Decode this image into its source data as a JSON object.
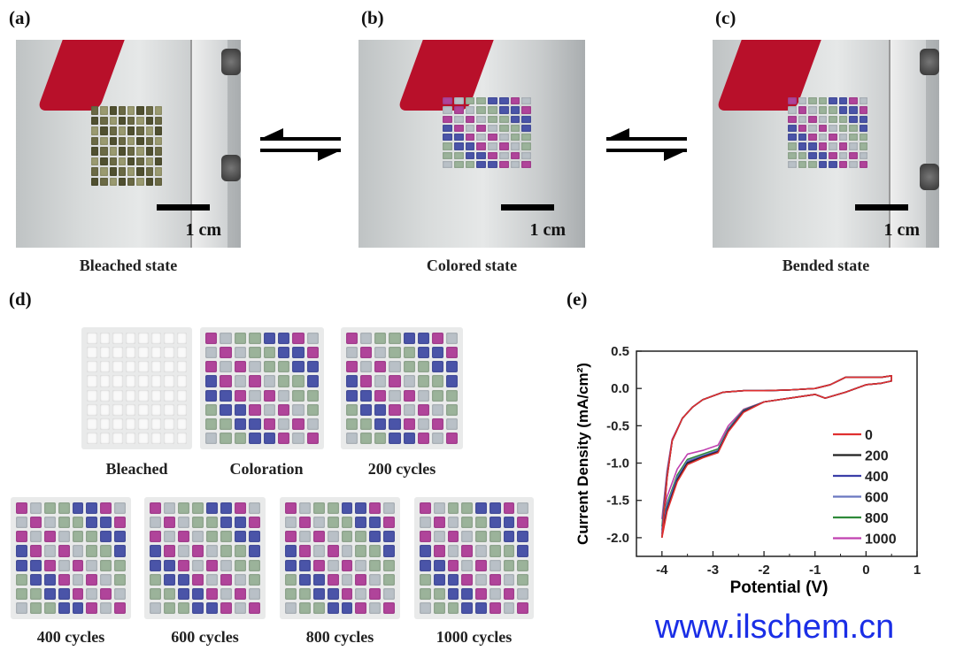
{
  "panels": {
    "a": {
      "label": "(a)",
      "caption": "Bleached state",
      "scale": "1 cm"
    },
    "b": {
      "label": "(b)",
      "caption": "Colored state",
      "scale": "1 cm"
    },
    "c": {
      "label": "(c)",
      "caption": "Bended state",
      "scale": "1 cm"
    },
    "d": {
      "label": "(d)",
      "samples": [
        "Bleached",
        "Coloration",
        "200 cycles",
        "400 cycles",
        "600 cycles",
        "800 cycles",
        "1000 cycles"
      ]
    },
    "e": {
      "label": "(e)"
    }
  },
  "watermark": "www.ilschem.cn",
  "colors": {
    "magenta": "#b0449a",
    "blue": "#4a54a8",
    "green": "#9bb39a",
    "gray": "#b9c0c7",
    "tape_red": "#b8102a",
    "watermark": "#1a2ee6"
  },
  "chart_data": {
    "type": "line",
    "title": "",
    "xlabel": "Potential (V)",
    "ylabel": "Current Density (mA/cm²)",
    "xlim": [
      -4.5,
      1
    ],
    "ylim": [
      -2.25,
      0.5
    ],
    "xticks": [
      "-4",
      "-3",
      "-2",
      "-1",
      "0",
      "1"
    ],
    "yticks": [
      "0.5",
      "0.0",
      "-0.5",
      "-1.0",
      "-1.5",
      "-2.0"
    ],
    "legend_placement": "right",
    "grid": false,
    "x": [
      -4.0,
      -3.9,
      -3.8,
      -3.6,
      -3.4,
      -3.2,
      -2.8,
      -2.4,
      -2.0,
      -1.5,
      -1.0,
      -0.7,
      -0.4,
      0.0,
      0.3,
      0.5,
      0.5,
      0.3,
      0.0,
      -0.4,
      -0.8,
      -1.0,
      -1.5,
      -2.0,
      -2.4,
      -2.7,
      -2.9,
      -3.2,
      -3.5,
      -3.7,
      -3.9,
      -4.0
    ],
    "series": [
      {
        "name": "0",
        "color": "#e03030",
        "y": [
          -2.0,
          -1.2,
          -0.7,
          -0.4,
          -0.25,
          -0.15,
          -0.05,
          -0.03,
          -0.03,
          -0.02,
          0.0,
          0.05,
          0.15,
          0.15,
          0.15,
          0.17,
          0.1,
          0.07,
          0.05,
          -0.05,
          -0.13,
          -0.08,
          -0.13,
          -0.18,
          -0.32,
          -0.58,
          -0.86,
          -0.93,
          -1.02,
          -1.25,
          -1.65,
          -2.0
        ]
      },
      {
        "name": "200",
        "color": "#222222",
        "y": [
          -2.0,
          -1.2,
          -0.7,
          -0.4,
          -0.25,
          -0.15,
          -0.05,
          -0.03,
          -0.03,
          -0.02,
          0.0,
          0.05,
          0.15,
          0.15,
          0.15,
          0.17,
          0.1,
          0.07,
          0.05,
          -0.05,
          -0.13,
          -0.08,
          -0.13,
          -0.18,
          -0.31,
          -0.57,
          -0.85,
          -0.92,
          -1.0,
          -1.23,
          -1.63,
          -1.98
        ]
      },
      {
        "name": "400",
        "color": "#3b3fa8",
        "y": [
          -1.95,
          -1.18,
          -0.7,
          -0.4,
          -0.25,
          -0.15,
          -0.05,
          -0.03,
          -0.03,
          -0.02,
          0.0,
          0.05,
          0.15,
          0.15,
          0.15,
          0.17,
          0.1,
          0.07,
          0.05,
          -0.05,
          -0.13,
          -0.08,
          -0.13,
          -0.18,
          -0.3,
          -0.56,
          -0.84,
          -0.91,
          -0.99,
          -1.21,
          -1.6,
          -1.95
        ]
      },
      {
        "name": "600",
        "color": "#6a78c0",
        "y": [
          -1.9,
          -1.16,
          -0.7,
          -0.4,
          -0.25,
          -0.15,
          -0.05,
          -0.03,
          -0.03,
          -0.02,
          0.0,
          0.05,
          0.15,
          0.15,
          0.15,
          0.17,
          0.1,
          0.07,
          0.05,
          -0.05,
          -0.13,
          -0.08,
          -0.13,
          -0.18,
          -0.3,
          -0.55,
          -0.83,
          -0.9,
          -0.97,
          -1.19,
          -1.57,
          -1.9
        ]
      },
      {
        "name": "800",
        "color": "#2f8a3a",
        "y": [
          -1.85,
          -1.14,
          -0.7,
          -0.4,
          -0.25,
          -0.15,
          -0.05,
          -0.03,
          -0.03,
          -0.02,
          0.0,
          0.05,
          0.15,
          0.15,
          0.15,
          0.17,
          0.1,
          0.07,
          0.05,
          -0.05,
          -0.13,
          -0.08,
          -0.13,
          -0.18,
          -0.29,
          -0.54,
          -0.81,
          -0.88,
          -0.95,
          -1.16,
          -1.54,
          -1.85
        ]
      },
      {
        "name": "1000",
        "color": "#c040b0",
        "y": [
          -1.75,
          -1.1,
          -0.68,
          -0.4,
          -0.25,
          -0.15,
          -0.05,
          -0.03,
          -0.03,
          -0.02,
          0.0,
          0.05,
          0.15,
          0.15,
          0.15,
          0.17,
          0.1,
          0.07,
          0.05,
          -0.05,
          -0.13,
          -0.08,
          -0.13,
          -0.18,
          -0.28,
          -0.5,
          -0.76,
          -0.83,
          -0.88,
          -1.08,
          -1.45,
          -1.75
        ]
      }
    ]
  }
}
